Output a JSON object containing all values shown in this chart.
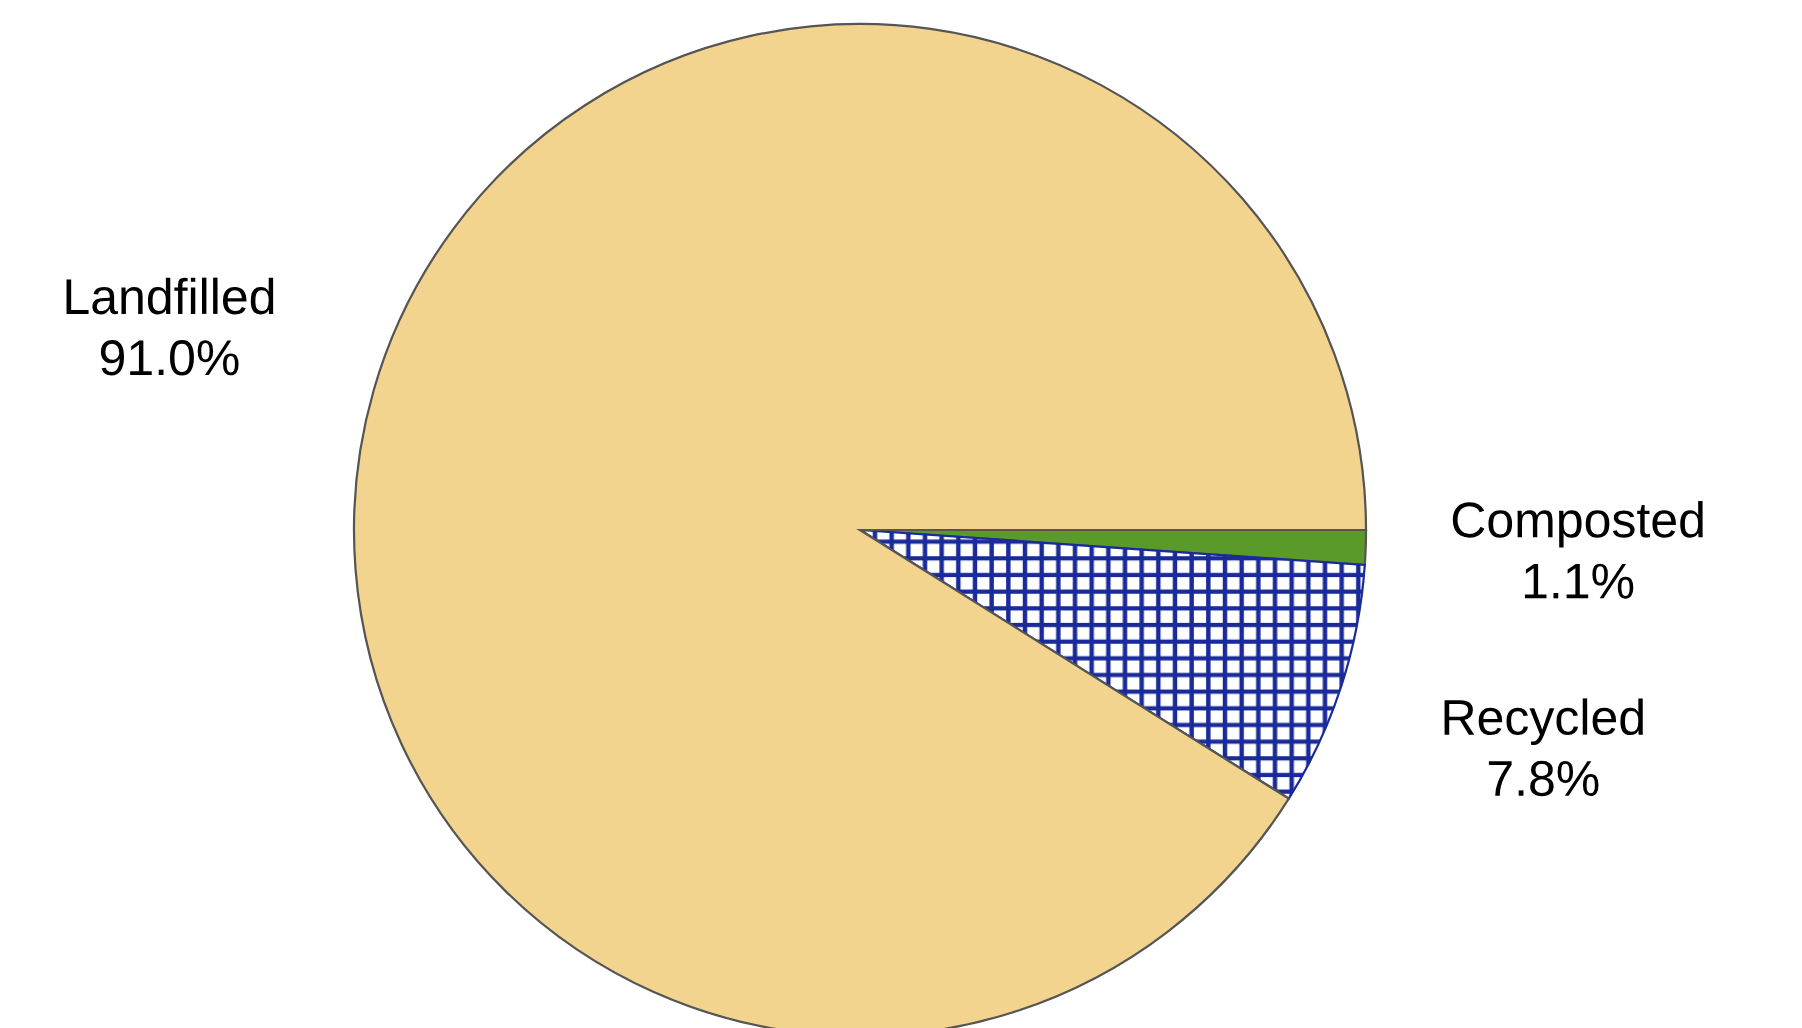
{
  "chart_data": {
    "type": "pie",
    "categories": [
      "Composted",
      "Recycled",
      "Landfilled"
    ],
    "values": [
      1.1,
      7.8,
      91.0
    ],
    "value_labels": [
      "1.1%",
      "7.8%",
      "91.0%"
    ],
    "colors": [
      "#5a9a2a",
      "#1a2a9a",
      "#f2d48e"
    ]
  }
}
